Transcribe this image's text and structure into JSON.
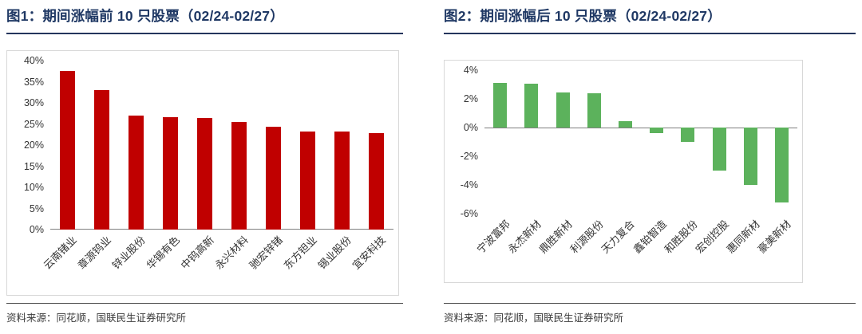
{
  "figures": [
    {
      "source_label": "资料来源：同花顺，国联民生证券研究所"
    },
    {
      "source_label": "资料来源：同花顺，国联民生证券研究所"
    }
  ],
  "chart_data": [
    {
      "type": "bar",
      "title": "图1：期间涨幅前 10 只股票（02/24-02/27）",
      "categories": [
        "云南锗业",
        "章源钨业",
        "锌业股份",
        "华锡有色",
        "中钨高新",
        "永兴材料",
        "驰宏锌锗",
        "东方钽业",
        "锡业股份",
        "宜安科技"
      ],
      "values": [
        37.5,
        33.0,
        27.0,
        26.7,
        26.4,
        25.4,
        24.4,
        23.3,
        23.2,
        22.9
      ],
      "unit": "%",
      "ylim": [
        0,
        40
      ],
      "ytick_step": 5,
      "bar_color": "#C00000",
      "grid": false,
      "legend": "none",
      "xlabel": "",
      "ylabel": ""
    },
    {
      "type": "bar",
      "title": "图2：期间涨幅后 10 只股票（02/24-02/27）",
      "categories": [
        "宁波富邦",
        "永杰新材",
        "鼎胜新材",
        "利源股份",
        "天力复合",
        "鑫铂智造",
        "和胜股份",
        "宏创控股",
        "惠同新材",
        "豪美新材"
      ],
      "values": [
        3.1,
        3.05,
        2.45,
        2.4,
        0.45,
        -0.4,
        -1.0,
        -3.0,
        -4.0,
        -5.2
      ],
      "unit": "%",
      "ylim": [
        -6,
        4
      ],
      "ytick_step": 2,
      "bar_color": "#5CB25C",
      "grid": false,
      "legend": "none",
      "xlabel": "",
      "ylabel": ""
    }
  ]
}
